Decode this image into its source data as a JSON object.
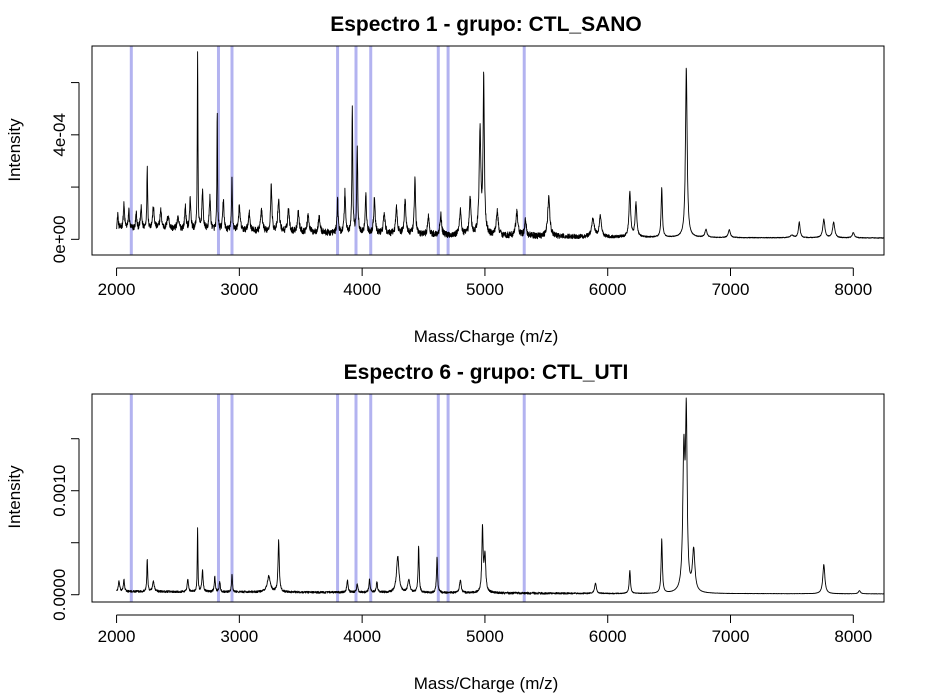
{
  "chart_data": [
    {
      "type": "line",
      "title": "Espectro  1 - grupo:  CTL_SANO",
      "xlabel": "Mass/Charge (m/z)",
      "ylabel": "Intensity",
      "xlim": [
        1800,
        8250
      ],
      "ylim": [
        -6e-05,
        0.00074
      ],
      "xticks": [
        2000,
        3000,
        4000,
        5000,
        6000,
        7000,
        8000
      ],
      "xtick_labels": [
        "2000",
        "3000",
        "4000",
        "5000",
        "6000",
        "7000",
        "8000"
      ],
      "yticks": [
        0,
        0.0002,
        0.0004,
        0.0006
      ],
      "ytick_labels": [
        "0e+00",
        "",
        "4e-04",
        ""
      ],
      "vlines": [
        2120,
        2830,
        2940,
        3800,
        3950,
        4070,
        4620,
        4700,
        5320
      ],
      "vline_color": "#b3b3f0",
      "line_color": "#000000",
      "baseline": [
        [
          2000,
          4e-05
        ],
        [
          2500,
          3.5e-05
        ],
        [
          3000,
          3e-05
        ],
        [
          3500,
          2.5e-05
        ],
        [
          4000,
          2e-05
        ],
        [
          4500,
          1.5e-05
        ],
        [
          5000,
          1.2e-05
        ],
        [
          5500,
          1e-05
        ],
        [
          6000,
          8e-06
        ],
        [
          7000,
          6e-06
        ],
        [
          8250,
          5e-06
        ]
      ],
      "peaks": [
        [
          2010,
          6e-05,
          4
        ],
        [
          2060,
          9e-05,
          6
        ],
        [
          2100,
          7e-05,
          5
        ],
        [
          2160,
          6e-05,
          5
        ],
        [
          2200,
          8e-05,
          6
        ],
        [
          2250,
          0.00023,
          4
        ],
        [
          2300,
          8e-05,
          8
        ],
        [
          2360,
          7e-05,
          8
        ],
        [
          2420,
          5e-05,
          10
        ],
        [
          2500,
          4e-05,
          10
        ],
        [
          2560,
          9e-05,
          6
        ],
        [
          2600,
          0.00012,
          6
        ],
        [
          2660,
          0.00067,
          3
        ],
        [
          2700,
          0.00015,
          6
        ],
        [
          2760,
          0.00013,
          6
        ],
        [
          2820,
          0.00045,
          3
        ],
        [
          2870,
          0.00012,
          6
        ],
        [
          2940,
          0.00021,
          4
        ],
        [
          3000,
          9e-05,
          8
        ],
        [
          3080,
          7e-05,
          8
        ],
        [
          3180,
          8e-05,
          8
        ],
        [
          3260,
          0.00018,
          6
        ],
        [
          3320,
          0.00012,
          8
        ],
        [
          3400,
          9e-05,
          8
        ],
        [
          3480,
          8e-05,
          8
        ],
        [
          3560,
          7e-05,
          8
        ],
        [
          3650,
          6e-05,
          8
        ],
        [
          3800,
          0.00013,
          5
        ],
        [
          3860,
          0.00016,
          6
        ],
        [
          3920,
          0.00048,
          4
        ],
        [
          3960,
          0.00032,
          5
        ],
        [
          4030,
          0.00015,
          6
        ],
        [
          4100,
          0.00013,
          7
        ],
        [
          4180,
          8e-05,
          8
        ],
        [
          4280,
          0.0001,
          8
        ],
        [
          4350,
          0.00013,
          8
        ],
        [
          4430,
          0.00022,
          6
        ],
        [
          4540,
          7e-05,
          8
        ],
        [
          4640,
          8e-05,
          8
        ],
        [
          4800,
          0.0001,
          8
        ],
        [
          4880,
          0.00014,
          8
        ],
        [
          4960,
          0.0004,
          8
        ],
        [
          4990,
          0.0006,
          6
        ],
        [
          5100,
          9e-05,
          10
        ],
        [
          5260,
          9e-05,
          10
        ],
        [
          5330,
          6e-05,
          8
        ],
        [
          5520,
          0.00015,
          10
        ],
        [
          5880,
          7e-05,
          12
        ],
        [
          5940,
          8e-05,
          10
        ],
        [
          6180,
          0.00017,
          8
        ],
        [
          6230,
          0.00013,
          8
        ],
        [
          6440,
          0.00019,
          6
        ],
        [
          6640,
          0.00065,
          8
        ],
        [
          6800,
          3e-05,
          10
        ],
        [
          6990,
          3e-05,
          10
        ],
        [
          7500,
          1e-05,
          15
        ],
        [
          7560,
          6e-05,
          8
        ],
        [
          7760,
          7e-05,
          10
        ],
        [
          7840,
          6e-05,
          10
        ],
        [
          8000,
          2e-05,
          10
        ]
      ],
      "noise": 2.5e-05
    },
    {
      "type": "line",
      "title": "Espectro  6 - grupo:  CTL_UTI",
      "xlabel": "Mass/Charge (m/z)",
      "ylabel": "Intensity",
      "xlim": [
        1800,
        8250
      ],
      "ylim": [
        -7e-05,
        0.00193
      ],
      "xticks": [
        2000,
        3000,
        4000,
        5000,
        6000,
        7000,
        8000
      ],
      "xtick_labels": [
        "2000",
        "3000",
        "4000",
        "5000",
        "6000",
        "7000",
        "8000"
      ],
      "yticks": [
        0,
        0.0005,
        0.001,
        0.0015
      ],
      "ytick_labels": [
        "0.0000",
        "",
        "0.0010",
        ""
      ],
      "vlines": [
        2120,
        2830,
        2940,
        3800,
        3950,
        4070,
        4620,
        4700,
        5320
      ],
      "vline_color": "#b3b3f0",
      "line_color": "#000000",
      "baseline": [
        [
          2000,
          3e-05
        ],
        [
          3000,
          2.5e-05
        ],
        [
          4000,
          2e-05
        ],
        [
          5000,
          1.5e-05
        ],
        [
          6000,
          1e-05
        ],
        [
          7000,
          1e-05
        ],
        [
          8250,
          8e-06
        ]
      ],
      "peaks": [
        [
          2020,
          0.0001,
          6
        ],
        [
          2060,
          0.00012,
          5
        ],
        [
          2250,
          0.00032,
          4
        ],
        [
          2300,
          0.0001,
          8
        ],
        [
          2580,
          0.00012,
          6
        ],
        [
          2660,
          0.00062,
          3
        ],
        [
          2700,
          0.0002,
          6
        ],
        [
          2800,
          0.00015,
          5
        ],
        [
          2840,
          0.0001,
          5
        ],
        [
          2940,
          0.00018,
          4
        ],
        [
          3240,
          0.00015,
          15
        ],
        [
          3320,
          0.0005,
          6
        ],
        [
          3880,
          0.00012,
          6
        ],
        [
          3960,
          8e-05,
          6
        ],
        [
          4060,
          0.00012,
          6
        ],
        [
          4120,
          0.0001,
          6
        ],
        [
          4290,
          0.00035,
          12
        ],
        [
          4380,
          0.00012,
          10
        ],
        [
          4460,
          0.00045,
          5
        ],
        [
          4610,
          0.00035,
          5
        ],
        [
          4800,
          0.00012,
          8
        ],
        [
          4980,
          0.00062,
          6
        ],
        [
          5000,
          0.00035,
          8
        ],
        [
          5900,
          0.0001,
          8
        ],
        [
          6180,
          0.00022,
          6
        ],
        [
          6440,
          0.00052,
          6
        ],
        [
          6620,
          0.0013,
          10
        ],
        [
          6640,
          0.0016,
          8
        ],
        [
          6700,
          0.0004,
          12
        ],
        [
          7760,
          0.00028,
          10
        ],
        [
          8050,
          3e-05,
          10
        ]
      ],
      "noise": 2e-05
    }
  ]
}
